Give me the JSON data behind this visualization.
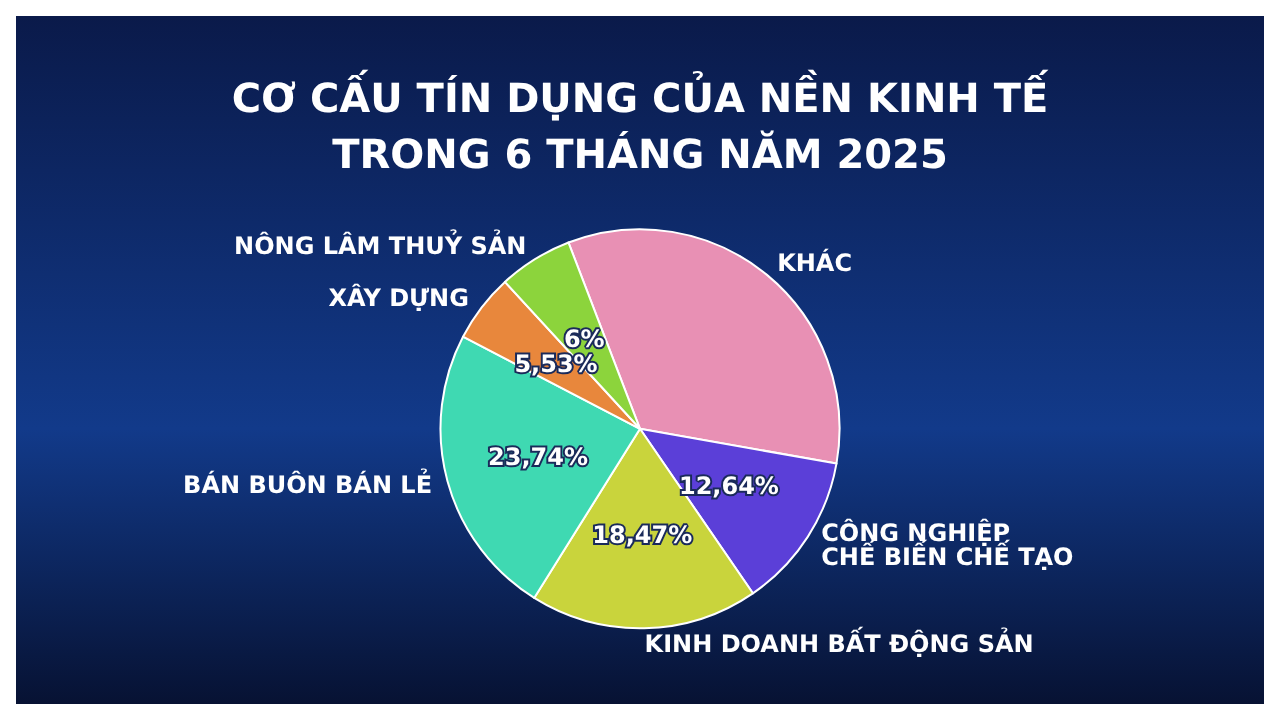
{
  "chart_data": {
    "type": "pie",
    "title": "CƠ CẤU TÍN DỤNG CỦA NỀN KINH TẾ\nTRONG 6 THÁNG NĂM 2025",
    "categories": [
      "KHÁC",
      "CÔNG NGHIỆP\nCHẾ BIẾN CHẾ TẠO",
      "KINH DOANH BẤT ĐỘNG SẢN",
      "BÁN BUÔN BÁN LẺ",
      "XÂY DỰNG",
      "NÔNG LÂM THUỶ SẢN"
    ],
    "values": [
      33.62,
      12.64,
      18.47,
      23.74,
      5.53,
      6
    ],
    "colors": [
      "#e890b4",
      "#5b3fd8",
      "#c9d43c",
      "#3fd9b2",
      "#e8873c",
      "#8cd43c"
    ],
    "value_labels": [
      null,
      "12,64%",
      "18,47%",
      "23,74%",
      "5,53%",
      "6%"
    ]
  }
}
